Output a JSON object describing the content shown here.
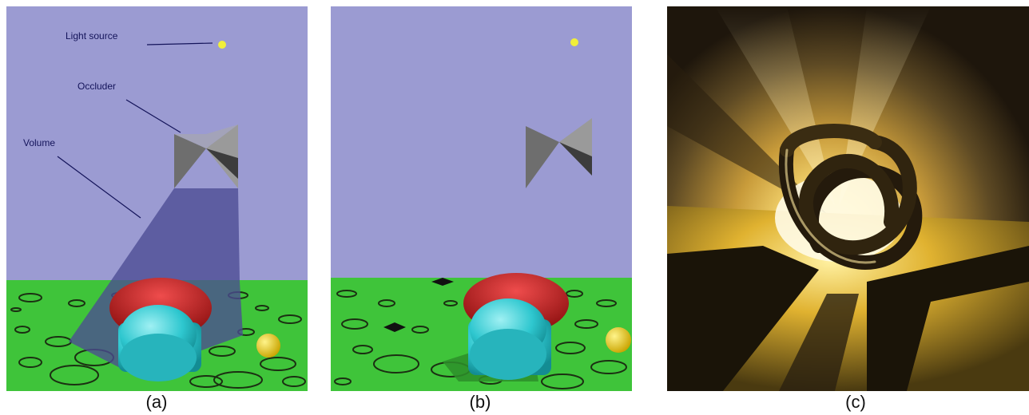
{
  "panels": [
    {
      "id": "a",
      "caption": "(a)"
    },
    {
      "id": "b",
      "caption": "(b)"
    },
    {
      "id": "c",
      "caption": "(c)"
    }
  ],
  "annotations": {
    "light_source": "Light source",
    "occluder": "Occluder",
    "volume": "Volume"
  },
  "colors": {
    "sky": "#9b9bd2",
    "ground": "#3fc43a",
    "volume": "#4c4c94",
    "occluder_dark": "#6e6e6e",
    "occluder_light": "#a3a3a3",
    "red_torus": "#c81e1e",
    "cyan_cylinder": "#2ec7cf",
    "yellow_sphere": "#e8d21e",
    "glow": "#ffe27a"
  }
}
